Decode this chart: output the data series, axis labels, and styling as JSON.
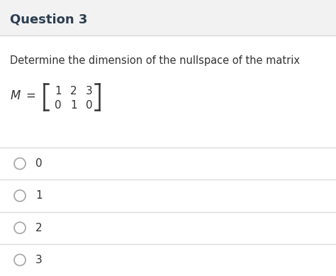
{
  "title": "Question 3",
  "title_fontsize": 13,
  "title_bg_color": "#f2f2f2",
  "body_bg_color": "#ffffff",
  "question_text": "Determine the dimension of the nullspace of the matrix",
  "question_fontsize": 10.5,
  "matrix_rows": [
    [
      "1",
      "2",
      "3"
    ],
    [
      "0",
      "1",
      "0"
    ]
  ],
  "choices": [
    "0",
    "1",
    "2",
    "3"
  ],
  "choice_fontsize": 11,
  "radio_color": "#aaaaaa",
  "line_color": "#d8d8d8",
  "text_color": "#333333",
  "title_text_color": "#2c3e50"
}
